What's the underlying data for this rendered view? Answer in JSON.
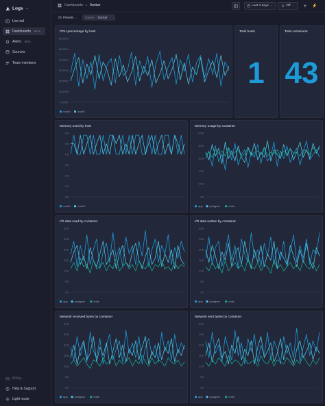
{
  "app": {
    "name": "Logs"
  },
  "sidebar": {
    "items": [
      {
        "label": "Live tail",
        "icon": "live-tail-icon"
      },
      {
        "label": "Dashboards",
        "badge": "BETA",
        "icon": "dashboards-icon",
        "active": true
      },
      {
        "label": "Alerts",
        "badge": "BETA",
        "icon": "alerts-icon"
      },
      {
        "label": "Sources",
        "icon": "sources-icon"
      },
      {
        "label": "Team members",
        "icon": "team-icon"
      }
    ],
    "bottom": [
      {
        "label": "Billing",
        "icon": "billing-icon"
      },
      {
        "label": "Help & Support",
        "icon": "help-icon"
      },
      {
        "label": "Light mode",
        "icon": "light-mode-icon"
      }
    ]
  },
  "header": {
    "breadcrumb": [
      "Dashboards",
      "Docker"
    ],
    "time_range": "Last 3 days",
    "refresh": "Off"
  },
  "filters": {
    "presets": "Presets",
    "source_key": "source",
    "source_value": "Docker"
  },
  "colors": {
    "series1": "#1d9bd8",
    "series2": "#4fc3dd",
    "series3": "#17a890",
    "accent": "#1d9bd8"
  },
  "panels": {
    "cpu": {
      "title": "CPU percentage by host"
    },
    "total_hosts": {
      "title": "Total hosts",
      "value": "1"
    },
    "total_containers": {
      "title": "Total containers",
      "value": "43"
    },
    "memory_host": {
      "title": "Memory used by host"
    },
    "memory_container": {
      "title": "Memory usage by container"
    },
    "io_read": {
      "title": "I/O data read by container"
    },
    "io_write": {
      "title": "I/O data written by container"
    },
    "net_rx": {
      "title": "Network received bytes by container"
    },
    "net_tx": {
      "title": "Network sent bytes by container"
    }
  },
  "chart_data": [
    {
      "id": "cpu",
      "type": "line",
      "title": "CPU percentage by host",
      "yticks": [
        "60,000%",
        "50,000%",
        "40,000%",
        "30,000%",
        "20,000%",
        "10,000%",
        "0,000%"
      ],
      "ylim": [
        0,
        60000
      ],
      "series": [
        {
          "name": "node1",
          "values": [
            28000,
            46000,
            15000,
            40000,
            22000,
            38000,
            12000,
            45000,
            20000,
            35000,
            41000,
            18000,
            44000,
            25000,
            30000,
            47000,
            16000,
            39000,
            27000,
            43000,
            14000,
            36000,
            48000,
            21000,
            33000,
            42000,
            17000,
            40000,
            29000,
            45000,
            19000,
            37000,
            44000,
            23000,
            41000,
            26000,
            46000,
            15000,
            38000,
            30000
          ]
        },
        {
          "name": "node2",
          "values": [
            20000,
            32000,
            42000,
            18000,
            36000,
            26000,
            44000,
            22000,
            38000,
            30000,
            16000,
            41000,
            24000,
            35000,
            19000,
            28000,
            43000,
            20000,
            34000,
            25000,
            40000,
            18000,
            27000,
            39000,
            22000,
            31000,
            45000,
            21000,
            37000,
            17000,
            33000,
            26000,
            42000,
            19000,
            30000,
            39000,
            23000,
            44000,
            25000,
            34000
          ]
        }
      ]
    },
    {
      "id": "memory_host",
      "type": "line",
      "title": "Memory used by host",
      "yticks": [
        "6 B",
        "5 B",
        "4 B",
        "3 B",
        "2 B",
        "1 B",
        "0 B"
      ],
      "ylim": [
        0,
        6
      ],
      "series": [
        {
          "name": "node1",
          "values": [
            4.0,
            5.8,
            4.0,
            4.0,
            5.8,
            5.8,
            4.0,
            5.8,
            4.0,
            4.0,
            5.8,
            4.0,
            5.8,
            5.8,
            4.0,
            4.0,
            5.8,
            4.0,
            5.8,
            4.0,
            5.8,
            5.8,
            4.0,
            4.0,
            5.8,
            4.0,
            5.8,
            4.0,
            4.0,
            5.8,
            5.8,
            4.0,
            5.8,
            4.0,
            5.8,
            4.0
          ]
        },
        {
          "name": "node2",
          "values": [
            5.0,
            5.0,
            4.0,
            5.8,
            4.0,
            5.0,
            5.8,
            4.0,
            5.0,
            5.8,
            4.0,
            5.0,
            4.0,
            5.8,
            5.0,
            5.8,
            4.0,
            5.0,
            4.0,
            5.8,
            4.0,
            5.0,
            5.8,
            4.0,
            5.0,
            5.8,
            4.0,
            5.0,
            5.8,
            4.0,
            5.0,
            4.0,
            5.8,
            5.0,
            4.0,
            5.0
          ]
        }
      ]
    },
    {
      "id": "memory_container",
      "type": "line",
      "title": "Memory usage by container",
      "yticks": [
        "100 B",
        "80 B",
        "60 B",
        "40 B",
        "20 B",
        "0 B"
      ],
      "ylim": [
        0,
        100
      ],
      "series": [
        {
          "name": "app",
          "values": [
            60,
            72,
            48,
            80,
            55,
            68,
            42,
            76,
            58,
            84,
            50,
            66,
            74,
            46,
            70,
            62,
            82,
            52,
            78,
            56,
            64,
            86,
            48,
            72,
            60,
            80,
            54,
            68,
            76,
            50,
            70,
            88,
            58,
            66,
            74,
            62
          ]
        },
        {
          "name": "postgres",
          "values": [
            70,
            58,
            82,
            64,
            76,
            52,
            86,
            60,
            72,
            56,
            80,
            62,
            54,
            78,
            66,
            84,
            58,
            70,
            62,
            88,
            56,
            74,
            66,
            60,
            82,
            64,
            76,
            58,
            70,
            86,
            62,
            74,
            60,
            84,
            68,
            80
          ]
        },
        {
          "name": "redis",
          "values": [
            66,
            70,
            62,
            74,
            68,
            72,
            64,
            78,
            66,
            70,
            74,
            62,
            68,
            76,
            64,
            70,
            72,
            66,
            78,
            64,
            70,
            68,
            74,
            62,
            72,
            66,
            76,
            68,
            70,
            64,
            74,
            72,
            66,
            78,
            70,
            76
          ]
        }
      ]
    },
    {
      "id": "io_read",
      "type": "line",
      "title": "I/O data read by container",
      "yticks": [
        "30 B",
        "25 B",
        "20 B",
        "15 B",
        "10 B",
        "5 B",
        "0 B"
      ],
      "ylim": [
        0,
        30
      ],
      "series": [
        {
          "name": "app",
          "values": [
            18,
            24,
            12,
            22,
            15,
            27,
            13,
            20,
            25,
            11,
            19,
            23,
            14,
            28,
            16,
            21,
            12,
            26,
            18,
            22,
            13,
            24,
            17,
            29,
            12,
            20,
            25,
            14,
            22,
            18,
            27,
            13,
            21,
            16,
            24,
            19
          ]
        },
        {
          "name": "postgres",
          "values": [
            14,
            19,
            22,
            13,
            17,
            11,
            21,
            15,
            12,
            18,
            24,
            13,
            16,
            20,
            11,
            18,
            22,
            14,
            12,
            19,
            23,
            15,
            11,
            17,
            21,
            13,
            16,
            24,
            12,
            18,
            14,
            20,
            11,
            22,
            15,
            13
          ]
        },
        {
          "name": "redis",
          "values": [
            11,
            14,
            10,
            16,
            12,
            13,
            9,
            15,
            11,
            12,
            14,
            10,
            13,
            11,
            16,
            10,
            12,
            14,
            11,
            13,
            10,
            15,
            12,
            11,
            14,
            10,
            13,
            12,
            15,
            11,
            12,
            10,
            14,
            11,
            13,
            12
          ]
        }
      ]
    },
    {
      "id": "io_write",
      "type": "line",
      "title": "I/O data written by container",
      "yticks": [
        "30 B",
        "25 B",
        "20 B",
        "15 B",
        "10 B",
        "5 B",
        "0 B"
      ],
      "ylim": [
        0,
        30
      ],
      "series": [
        {
          "name": "app",
          "values": [
            16,
            26,
            13,
            21,
            24,
            12,
            19,
            27,
            15,
            22,
            11,
            25,
            18,
            14,
            28,
            16,
            20,
            12,
            23,
            17,
            26,
            13,
            21,
            15,
            24,
            12,
            19,
            27,
            14,
            22,
            16,
            25,
            13,
            20,
            18,
            28
          ]
        },
        {
          "name": "postgres",
          "values": [
            20,
            14,
            22,
            17,
            11,
            19,
            15,
            23,
            12,
            18,
            21,
            13,
            24,
            16,
            11,
            20,
            14,
            22,
            12,
            18,
            15,
            24,
            11,
            19,
            16,
            13,
            22,
            17,
            12,
            20,
            14,
            23,
            15,
            11,
            21,
            17
          ]
        },
        {
          "name": "redis",
          "values": [
            12,
            10,
            14,
            11,
            13,
            9,
            15,
            10,
            12,
            14,
            11,
            13,
            10,
            16,
            12,
            11,
            14,
            10,
            13,
            12,
            9,
            15,
            11,
            13,
            10,
            12,
            14,
            11,
            13,
            10,
            15,
            12,
            11,
            14,
            10,
            13
          ]
        }
      ]
    },
    {
      "id": "net_rx",
      "type": "line",
      "title": "Network received bytes by container",
      "yticks": [
        "30 B",
        "25 B",
        "20 B",
        "15 B",
        "10 B",
        "5 B",
        "0 B"
      ],
      "ylim": [
        0,
        30
      ],
      "series": [
        {
          "name": "app",
          "values": [
            19,
            13,
            24,
            15,
            21,
            12,
            26,
            17,
            14,
            23,
            11,
            20,
            25,
            13,
            18,
            22,
            12,
            27,
            16,
            21,
            14,
            24,
            11,
            19,
            23,
            15,
            20,
            12,
            26,
            17,
            22,
            13,
            25,
            16,
            21,
            18
          ]
        },
        {
          "name": "postgres",
          "values": [
            14,
            20,
            11,
            18,
            22,
            13,
            16,
            24,
            12,
            19,
            15,
            21,
            11,
            17,
            23,
            14,
            20,
            12,
            18,
            15,
            22,
            13,
            19,
            24,
            11,
            17,
            14,
            21,
            13,
            19,
            16,
            23,
            12,
            18,
            15,
            20
          ]
        },
        {
          "name": "redis",
          "values": [
            11,
            13,
            10,
            12,
            14,
            11,
            9,
            13,
            12,
            10,
            14,
            11,
            12,
            15,
            10,
            13,
            11,
            12,
            14,
            10,
            13,
            11,
            15,
            12,
            10,
            14,
            11,
            13,
            12,
            10,
            14,
            12,
            11,
            13,
            10,
            12
          ]
        }
      ]
    },
    {
      "id": "net_tx",
      "type": "line",
      "title": "Network sent bytes by container",
      "yticks": [
        "30 B",
        "25 B",
        "20 B",
        "15 B",
        "10 B",
        "5 B",
        "0 B"
      ],
      "ylim": [
        0,
        30
      ],
      "series": [
        {
          "name": "app",
          "values": [
            22,
            14,
            26,
            16,
            20,
            12,
            24,
            18,
            13,
            27,
            15,
            21,
            11,
            23,
            17,
            25,
            12,
            20,
            15,
            26,
            13,
            22,
            18,
            11,
            24,
            16,
            21,
            14,
            28,
            12,
            19,
            25,
            15,
            22,
            17,
            26
          ]
        },
        {
          "name": "postgres",
          "values": [
            15,
            21,
            12,
            19,
            23,
            14,
            17,
            11,
            20,
            16,
            24,
            13,
            18,
            15,
            22,
            11,
            19,
            24,
            14,
            17,
            21,
            12,
            16,
            23,
            13,
            20,
            15,
            11,
            18,
            22,
            14,
            17,
            21,
            13,
            19,
            16
          ]
        },
        {
          "name": "redis",
          "values": [
            12,
            10,
            13,
            11,
            14,
            12,
            10,
            15,
            11,
            13,
            12,
            10,
            14,
            11,
            12,
            13,
            10,
            15,
            12,
            11,
            14,
            10,
            13,
            12,
            11,
            14,
            12,
            10,
            13,
            11,
            15,
            12,
            10,
            13,
            11,
            14
          ]
        }
      ]
    }
  ]
}
